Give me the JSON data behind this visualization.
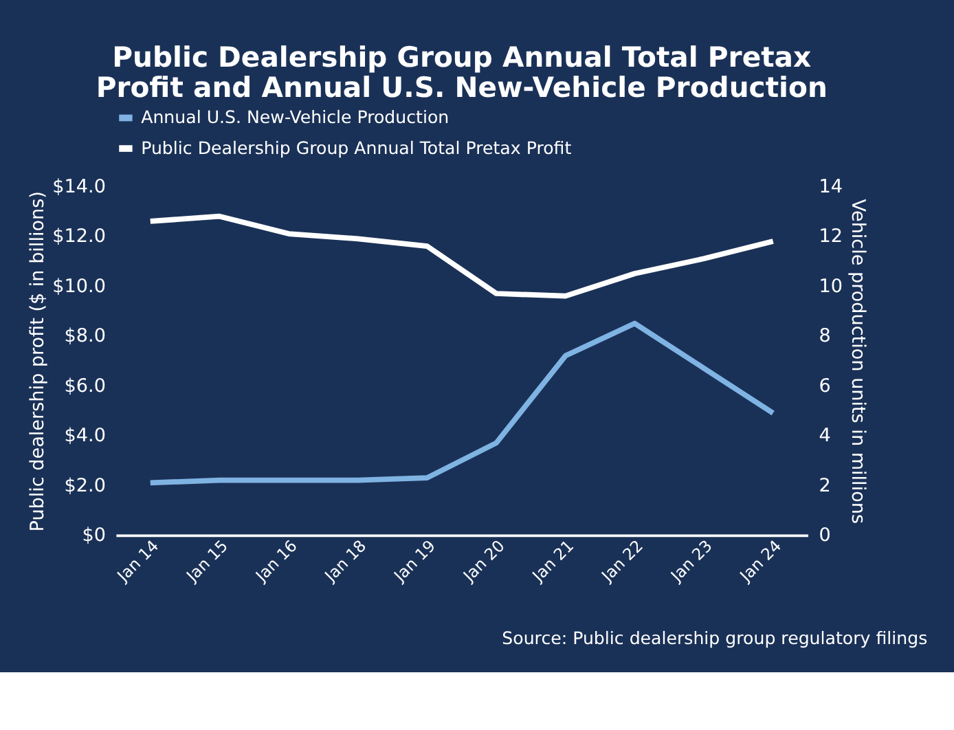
{
  "chart_data": {
    "type": "line",
    "title": "Public Dealership Group Annual Total Pretax Profit and Annual U.S. New-Vehicle Production",
    "ylabel": "Public dealership profit ($ in billions)",
    "y2label": "Vehicle production units in millions",
    "categories": [
      "Jan 14",
      "Jan 15",
      "Jan 16",
      "Jan 18",
      "Jan 19",
      "Jan 20",
      "Jan 21",
      "Jan 22",
      "Jan 23",
      "Jan 24"
    ],
    "series": [
      {
        "name": "Annual U.S. New-Vehicle Production",
        "color": "#7fb3e3",
        "values": [
          2.1,
          2.2,
          2.2,
          2.2,
          2.3,
          3.7,
          7.2,
          8.5,
          6.7,
          4.9
        ]
      },
      {
        "name": "Public Dealership Group Annual Total Pretax Profit",
        "color": "#ffffff",
        "values": [
          12.6,
          12.8,
          12.1,
          11.9,
          11.6,
          9.7,
          9.6,
          10.5,
          11.1,
          11.8
        ]
      }
    ],
    "ylim": [
      0,
      14
    ],
    "yticks": [
      {
        "value": 0,
        "label": "$0"
      },
      {
        "value": 2,
        "label": "$2.0"
      },
      {
        "value": 4,
        "label": "$4.0"
      },
      {
        "value": 6,
        "label": "$6.0"
      },
      {
        "value": 8,
        "label": "$8.0"
      },
      {
        "value": 10,
        "label": "$10.0"
      },
      {
        "value": 12,
        "label": "$12.0"
      },
      {
        "value": 14,
        "label": "$14.0"
      }
    ],
    "y2lim": [
      0,
      14
    ],
    "y2ticks": [
      0,
      2,
      4,
      6,
      8,
      10,
      12,
      14
    ],
    "grid": false,
    "legend": "top",
    "marker": "none",
    "line_style": "solid",
    "annotations": [
      "Source: Public dealership group regulatory filings"
    ]
  }
}
